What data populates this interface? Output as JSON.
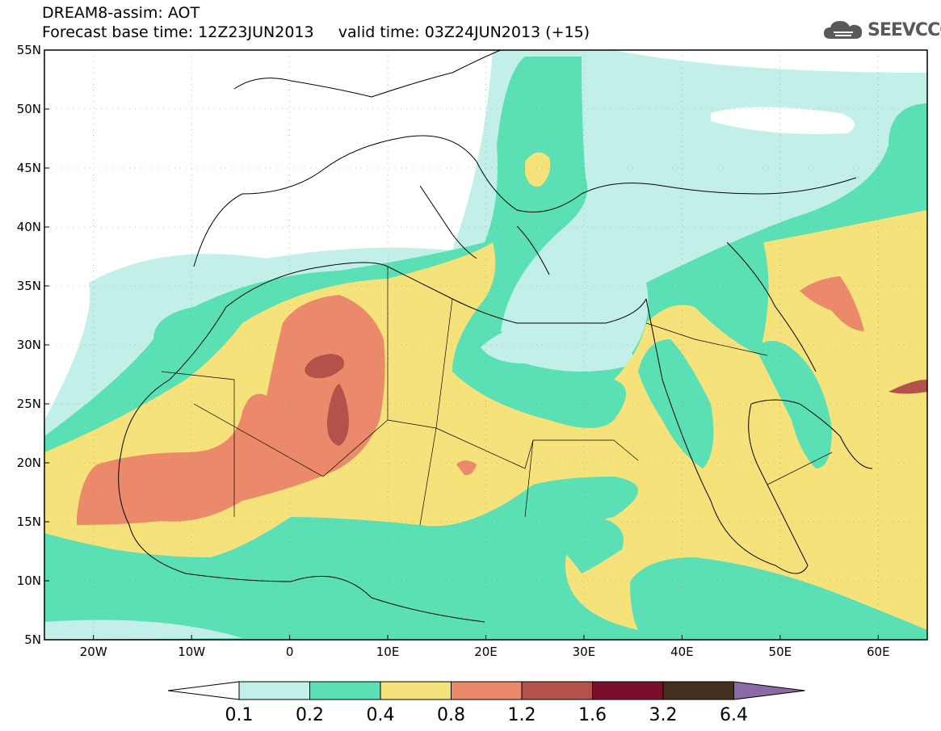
{
  "header": {
    "line1": "DREAM8-assim: AOT",
    "line2": "Forecast base time: 12Z23JUN2013     valid time: 03Z24JUN2013 (+15)"
  },
  "logo": {
    "text": "SEEVCCC",
    "icon": "cloud-logo-icon"
  },
  "map": {
    "lon_range": [
      -25,
      65
    ],
    "lat_range": [
      5,
      55
    ],
    "lat_labels": [
      "55N",
      "50N",
      "45N",
      "40N",
      "35N",
      "30N",
      "25N",
      "20N",
      "15N",
      "10N",
      "5N"
    ],
    "lon_labels": [
      "20W",
      "10W",
      "0",
      "10E",
      "20E",
      "30E",
      "40E",
      "50E",
      "60E"
    ]
  },
  "colorbar": {
    "labels": [
      "0.1",
      "0.2",
      "0.4",
      "0.8",
      "1.2",
      "1.6",
      "3.2",
      "6.4"
    ],
    "colors": [
      "#ffffff",
      "#c2f0e8",
      "#5ae0b4",
      "#f5e27a",
      "#ea8a6a",
      "#b2524a",
      "#7a0f2a",
      "#44301f",
      "#8c6aa8"
    ]
  },
  "fill_colors": {
    "light": "#c2f0e8",
    "green": "#5ae0b4",
    "yellow": "#f5e27a",
    "orange": "#ea8a6a",
    "darkred": "#b2524a"
  }
}
